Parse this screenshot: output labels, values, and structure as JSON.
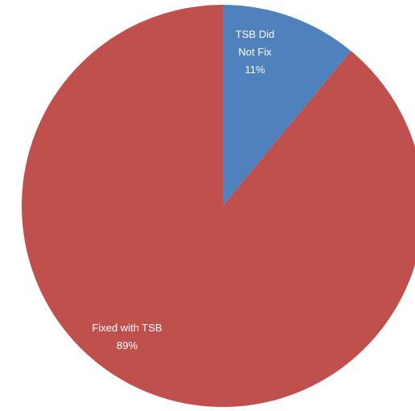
{
  "chart_data": {
    "type": "pie",
    "title": "",
    "slices": [
      {
        "label": "TSB Did Not Fix",
        "label_lines": [
          "TSB Did",
          "Not Fix"
        ],
        "value": 11,
        "value_label": "11%",
        "color": "#4f81bd"
      },
      {
        "label": "Fixed with TSB",
        "label_lines": [
          "Fixed with TSB"
        ],
        "value": 89,
        "value_label": "89%",
        "color": "#c0504d"
      }
    ],
    "start_angle_deg": 0,
    "direction": "clockwise",
    "legend": "none"
  }
}
